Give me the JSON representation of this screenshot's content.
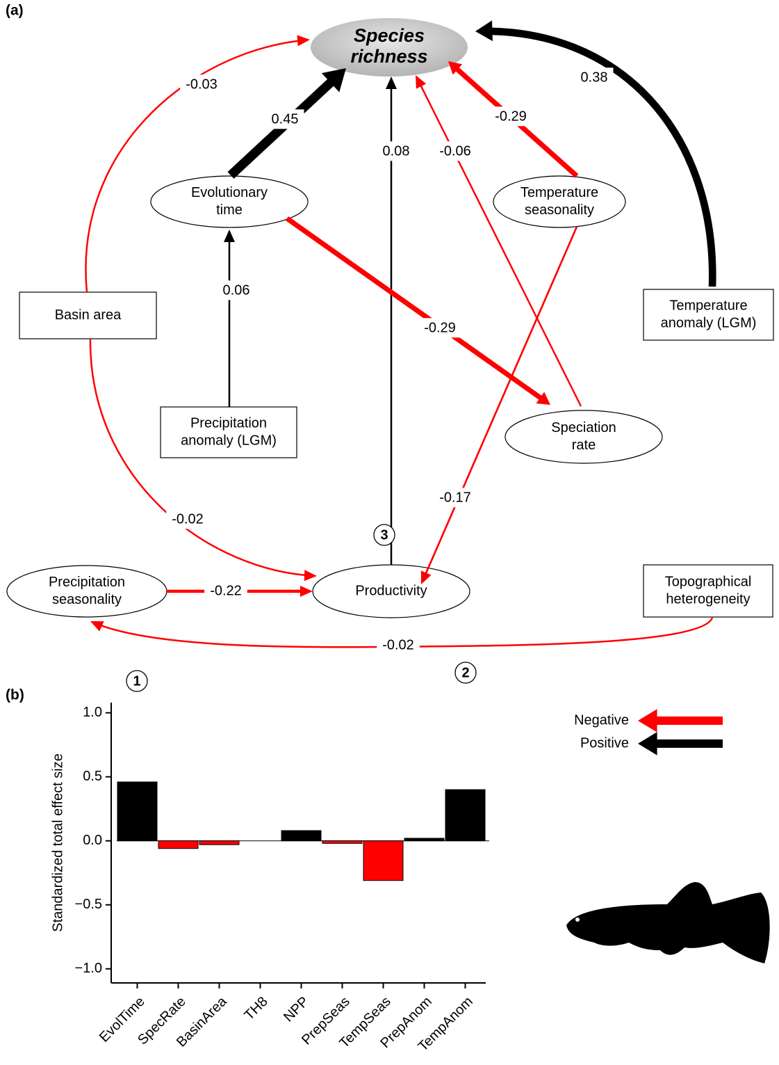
{
  "panel_a": {
    "label": "(a)"
  },
  "diagram": {
    "nodes": [
      {
        "label": [
          "Species",
          "richness"
        ]
      },
      {
        "label": [
          "Evolutionary",
          "time"
        ]
      },
      {
        "label": [
          "Temperature",
          "seasonality"
        ]
      },
      {
        "label": [
          "Basin area"
        ]
      },
      {
        "label": [
          "Temperature",
          "anomaly (LGM)"
        ]
      },
      {
        "label": [
          "Precipitation",
          "anomaly (LGM)"
        ]
      },
      {
        "label": [
          "Speciation",
          "rate"
        ]
      },
      {
        "label": [
          "Productivity"
        ]
      },
      {
        "label": [
          "Precipitation",
          "seasonality"
        ]
      },
      {
        "label": [
          "Topographical",
          "heterogeneity"
        ]
      }
    ],
    "edges": [
      {
        "coef": -0.03
      },
      {
        "coef": 0.45
      },
      {
        "coef": 0.08
      },
      {
        "coef": -0.06
      },
      {
        "coef": -0.29
      },
      {
        "coef": 0.38
      },
      {
        "coef": 0.06
      },
      {
        "coef": -0.29
      },
      {
        "coef": -0.17
      },
      {
        "coef": -0.02
      },
      {
        "coef": -0.22
      },
      {
        "coef": -0.02
      }
    ]
  },
  "panel_b": {
    "label": "(b)"
  },
  "chart_data": {
    "type": "bar",
    "ylabel": "Standardized total effect size",
    "categories": [
      "EvolTime",
      "SpecRate",
      "BasinArea",
      "TH8",
      "NPP",
      "PrepSeas",
      "TempSeas",
      "PrepAnom",
      "TempAnom"
    ],
    "values": [
      0.46,
      -0.06,
      -0.03,
      0,
      0.08,
      -0.02,
      -0.31,
      0.02,
      0.4
    ],
    "colors": [
      "#000000",
      "#ff0000",
      "#ff0000",
      "#000000",
      "#000000",
      "#ff0000",
      "#ff0000",
      "#000000",
      "#000000"
    ],
    "ylim": [
      -1.11,
      1.08
    ],
    "yticks": [
      {
        "value": -1,
        "label": "−1.0"
      },
      {
        "value": -0.5,
        "label": "−0.5"
      },
      {
        "value": 0,
        "label": "0.0"
      },
      {
        "value": 0.5,
        "label": "0.5"
      },
      {
        "value": 1,
        "label": "1.0"
      }
    ],
    "legend": [
      {
        "label": "Negative",
        "color": "#ff0000"
      },
      {
        "label": "Positive",
        "color": "#000000"
      }
    ],
    "annotations": [
      {
        "text": "1"
      },
      {
        "text": "2"
      },
      {
        "text": "3"
      }
    ]
  }
}
